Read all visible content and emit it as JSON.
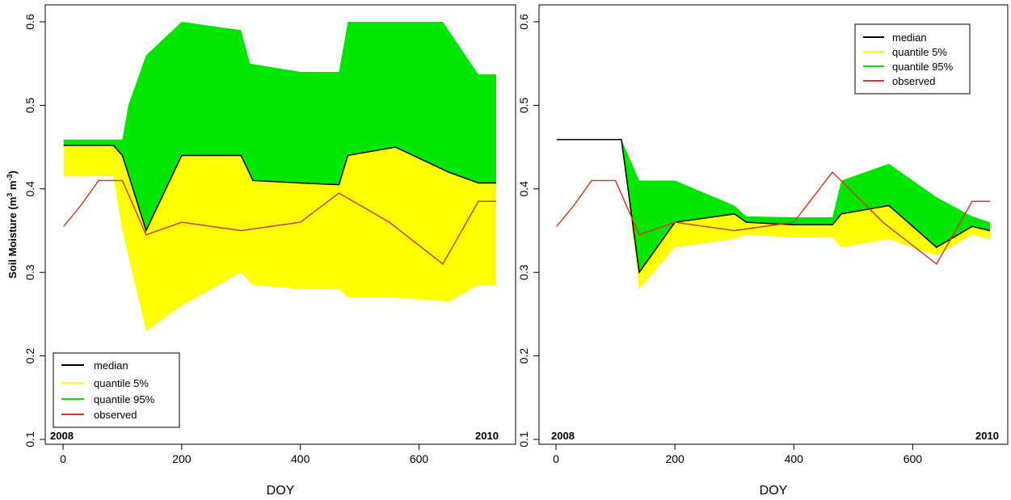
{
  "colors": {
    "median": "#000000",
    "q05": "#ffff00",
    "q95": "#00e600",
    "observed": "#d23c28",
    "axis": "#000000"
  },
  "shared": {
    "ylabel_main": "Soil Moisture (m",
    "ylabel_sup1": "3",
    "ylabel_mid": " m",
    "ylabel_sup2": "-3",
    "ylabel_end": ")",
    "xlabel": "DOY",
    "year_start": "2008",
    "year_end": "2010",
    "legend": [
      "median",
      "quantile 5%",
      "quantile 95%",
      "observed"
    ]
  },
  "chart_data": [
    {
      "type": "area",
      "xlabel": "DOY",
      "ylabel": "Soil Moisture (m3 m-3)",
      "xlim": [
        0,
        730
      ],
      "ylim": [
        0.1,
        0.6
      ],
      "x_ticks": [
        0,
        200,
        400,
        600
      ],
      "y_ticks": [
        0.1,
        0.2,
        0.3,
        0.4,
        0.5,
        0.6
      ],
      "legend_position": "bottom-left",
      "grid": false,
      "series": [
        {
          "name": "quantile 95%",
          "x": [
            1,
            100,
            110,
            140,
            200,
            300,
            315,
            400,
            465,
            480,
            560,
            640,
            700,
            730
          ],
          "values": [
            0.459,
            0.459,
            0.5,
            0.56,
            0.6,
            0.59,
            0.55,
            0.54,
            0.54,
            0.6,
            0.6,
            0.6,
            0.537,
            0.537
          ]
        },
        {
          "name": "quantile 5%",
          "x": [
            1,
            85,
            100,
            140,
            200,
            300,
            320,
            400,
            465,
            480,
            560,
            650,
            700,
            730
          ],
          "values": [
            0.415,
            0.415,
            0.35,
            0.23,
            0.26,
            0.3,
            0.285,
            0.28,
            0.28,
            0.27,
            0.27,
            0.265,
            0.285,
            0.285
          ]
        },
        {
          "name": "median",
          "x": [
            1,
            85,
            100,
            140,
            200,
            300,
            320,
            400,
            465,
            480,
            560,
            650,
            700,
            730
          ],
          "values": [
            0.452,
            0.452,
            0.44,
            0.35,
            0.44,
            0.44,
            0.41,
            0.407,
            0.405,
            0.44,
            0.45,
            0.42,
            0.407,
            0.407
          ]
        },
        {
          "name": "observed",
          "x": [
            1,
            30,
            60,
            100,
            140,
            200,
            300,
            400,
            465,
            550,
            640,
            700,
            730
          ],
          "values": [
            0.355,
            0.38,
            0.41,
            0.41,
            0.345,
            0.36,
            0.35,
            0.36,
            0.395,
            0.36,
            0.31,
            0.385,
            0.385
          ]
        }
      ]
    },
    {
      "type": "area",
      "xlabel": "DOY",
      "ylabel": "",
      "xlim": [
        0,
        730
      ],
      "ylim": [
        0.1,
        0.6
      ],
      "x_ticks": [
        0,
        200,
        400,
        600
      ],
      "y_ticks": [
        0.1,
        0.2,
        0.3,
        0.4,
        0.5,
        0.6
      ],
      "legend_position": "top-right",
      "grid": false,
      "series": [
        {
          "name": "quantile 95%",
          "x": [
            1,
            110,
            140,
            200,
            300,
            320,
            400,
            465,
            480,
            560,
            640,
            700,
            730
          ],
          "values": [
            0.459,
            0.459,
            0.41,
            0.41,
            0.38,
            0.367,
            0.366,
            0.366,
            0.41,
            0.43,
            0.39,
            0.367,
            0.36
          ]
        },
        {
          "name": "quantile 5%",
          "x": [
            1,
            110,
            140,
            200,
            300,
            320,
            400,
            465,
            480,
            560,
            640,
            700,
            730
          ],
          "values": [
            0.459,
            0.459,
            0.28,
            0.33,
            0.34,
            0.345,
            0.342,
            0.342,
            0.33,
            0.34,
            0.32,
            0.345,
            0.34
          ]
        },
        {
          "name": "median",
          "x": [
            1,
            110,
            140,
            200,
            300,
            320,
            400,
            465,
            480,
            560,
            640,
            700,
            730
          ],
          "values": [
            0.459,
            0.459,
            0.3,
            0.36,
            0.37,
            0.36,
            0.357,
            0.357,
            0.37,
            0.38,
            0.33,
            0.355,
            0.35
          ]
        },
        {
          "name": "observed",
          "x": [
            1,
            30,
            60,
            100,
            140,
            200,
            300,
            400,
            465,
            550,
            640,
            700,
            730
          ],
          "values": [
            0.355,
            0.38,
            0.41,
            0.41,
            0.345,
            0.36,
            0.35,
            0.36,
            0.42,
            0.36,
            0.31,
            0.385,
            0.385
          ]
        }
      ]
    }
  ]
}
